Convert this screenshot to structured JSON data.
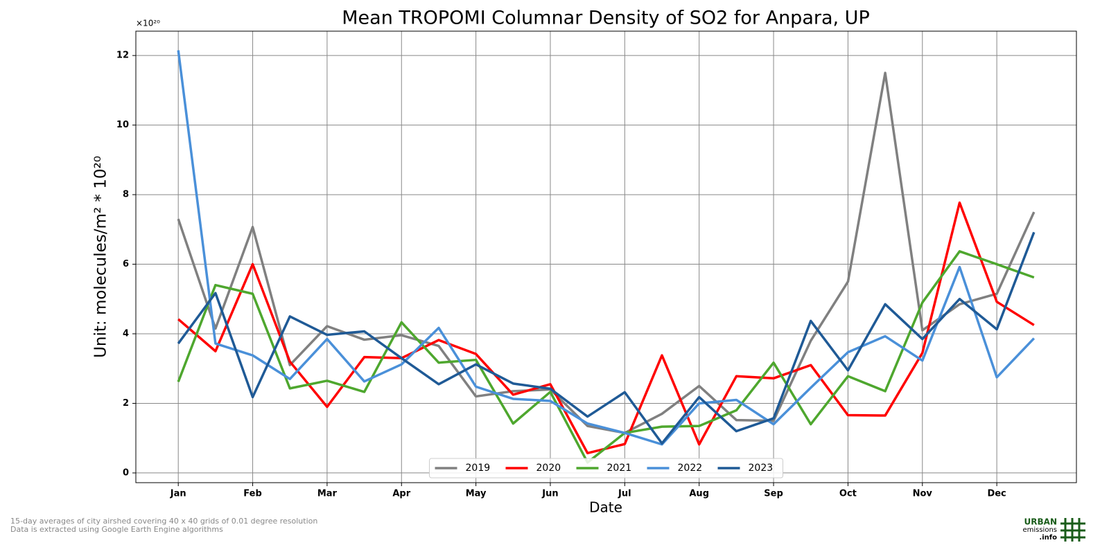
{
  "chart_data": {
    "type": "line",
    "title": "Mean TROPOMI Columnar Density of SO2 for Anpara, UP",
    "y_offset_label": "×10²⁰",
    "ylabel": "Unit: molecules/m² * 10²⁰",
    "xlabel": "Date",
    "footnotes": [
      "15-day averages of city airshed covering 40 x 40 grids of 0.01 degree resolution",
      "Data is extracted using Google Earth Engine algorithms"
    ],
    "logo": [
      "URBAN",
      "emissions",
      ".info"
    ],
    "categories": [
      "Jan",
      null,
      "Feb",
      null,
      "Mar",
      null,
      "Apr",
      null,
      "May",
      null,
      "Jun",
      null,
      "Jul",
      null,
      "Aug",
      null,
      "Sep",
      null,
      "Oct",
      null,
      "Nov",
      null,
      "Dec",
      null
    ],
    "ylim": [
      -0.28,
      12.7
    ],
    "yticks": [
      0,
      2,
      4,
      6,
      8,
      10,
      12
    ],
    "grid": true,
    "legend": "lower center",
    "series": [
      {
        "name": "2019",
        "color": "#808080",
        "values": [
          7.3,
          4.15,
          7.07,
          3.1,
          4.22,
          3.83,
          3.96,
          3.65,
          2.2,
          2.35,
          2.4,
          1.35,
          1.15,
          1.7,
          2.5,
          1.52,
          1.5,
          3.8,
          5.5,
          11.5,
          4.1,
          4.85,
          5.15,
          7.5
        ]
      },
      {
        "name": "2020",
        "color": "#ff0000",
        "values": [
          4.42,
          3.5,
          6.0,
          3.2,
          1.9,
          3.33,
          3.3,
          3.82,
          3.42,
          2.25,
          2.55,
          0.57,
          0.83,
          3.38,
          0.82,
          2.78,
          2.72,
          3.1,
          1.66,
          1.65,
          3.45,
          7.77,
          4.92,
          4.25
        ]
      },
      {
        "name": "2021",
        "color": "#4ea72e",
        "values": [
          2.62,
          5.4,
          5.15,
          2.43,
          2.65,
          2.33,
          4.33,
          3.17,
          3.25,
          1.42,
          2.33,
          0.3,
          1.15,
          1.33,
          1.35,
          1.8,
          3.17,
          1.4,
          2.78,
          2.35,
          4.9,
          6.37,
          6.0,
          5.62
        ]
      },
      {
        "name": "2022",
        "color": "#4a90d9",
        "values": [
          12.15,
          3.72,
          3.38,
          2.7,
          3.85,
          2.63,
          3.12,
          4.17,
          2.48,
          2.13,
          2.07,
          1.42,
          1.15,
          0.82,
          2.0,
          2.1,
          1.4,
          2.45,
          3.47,
          3.93,
          3.23,
          5.92,
          2.75,
          3.87
        ]
      },
      {
        "name": "2023",
        "color": "#1f5a96",
        "values": [
          3.72,
          5.17,
          2.18,
          4.5,
          3.97,
          4.07,
          3.3,
          2.55,
          3.12,
          2.57,
          2.42,
          1.62,
          2.32,
          0.85,
          2.18,
          1.2,
          1.57,
          4.37,
          2.95,
          4.85,
          3.85,
          5.0,
          4.13,
          6.92
        ]
      }
    ]
  }
}
